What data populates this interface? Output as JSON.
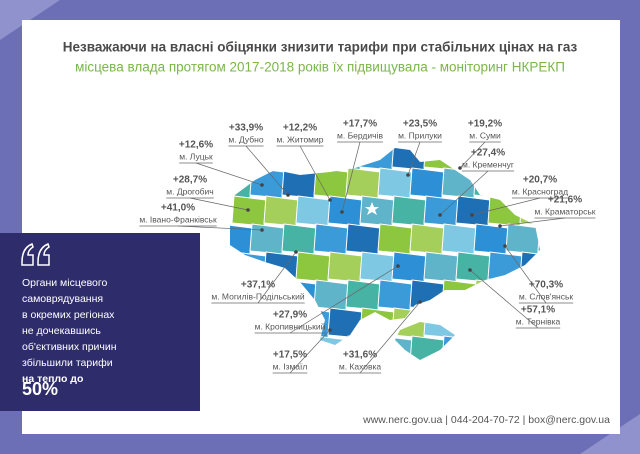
{
  "header": {
    "title": "Незважаючи на власні обіцянки знизити тарифи при стабільних цінах на газ",
    "subtitle": "місцева влада протягом 2017-2018 років їх підвищувала - моніторинг НКРЕКП"
  },
  "callouts": [
    {
      "value": "+12,6%",
      "city": "м. Луцьк"
    },
    {
      "value": "+33,9%",
      "city": "м. Дубно"
    },
    {
      "value": "+12,2%",
      "city": "м. Житомир"
    },
    {
      "value": "+17,7%",
      "city": "м. Бердичів"
    },
    {
      "value": "+23,5%",
      "city": "м. Прилуки"
    },
    {
      "value": "+19,2%",
      "city": "м. Суми"
    },
    {
      "value": "+27,4%",
      "city": "м. Кременчуг"
    },
    {
      "value": "+20,7%",
      "city": "м. Красноград"
    },
    {
      "value": "+21,6%",
      "city": "м. Краматорськ"
    },
    {
      "value": "+28,7%",
      "city": "м. Дрогобич"
    },
    {
      "value": "+41,0%",
      "city": "м. Івано-Франківськ"
    },
    {
      "value": "+37,1%",
      "city": "м. Могилів-Подільський"
    },
    {
      "value": "+27,9%",
      "city": "м. Кропивницький"
    },
    {
      "value": "+70,3%",
      "city": "м. Слов'янськ"
    },
    {
      "value": "+57,1%",
      "city": "м. Тернівка"
    },
    {
      "value": "+17,5%",
      "city": "м. Ізмаїл"
    },
    {
      "value": "+31,6%",
      "city": "м. Каховка"
    }
  ],
  "quote": {
    "lines": [
      "Органи місцевого",
      "самоврядування",
      "в окремих регіонах",
      "не дочекавшись",
      "об'єктивних причин",
      "збільшили тарифи"
    ],
    "emphasis": "на тепло до",
    "figure": "50%"
  },
  "footer": "www.nerc.gov.ua | 044-204-70-72 | box@nerc.gov.ua"
}
